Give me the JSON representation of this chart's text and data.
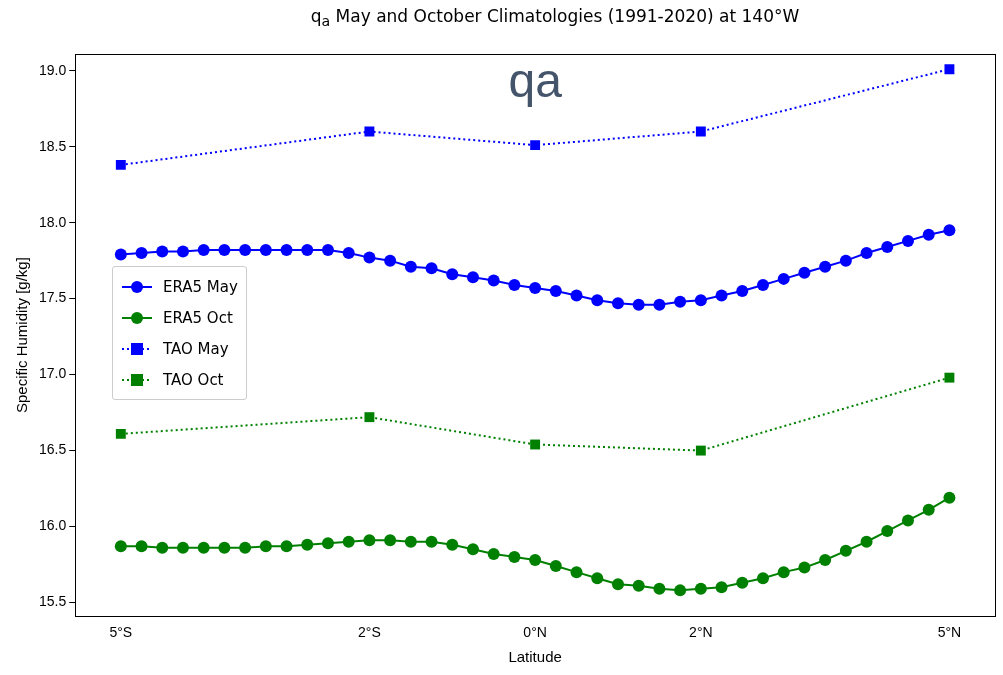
{
  "chart_data": {
    "type": "line",
    "title": "q$_{a}$ May and October Climatologies (1991-2020) at 140°W",
    "xlabel": "Latitude",
    "ylabel": "Specific Humidity [g/kg]",
    "annotations": [
      "qa"
    ],
    "xlim": [
      -5.55,
      5.55
    ],
    "xticks": [
      {
        "value": -5,
        "label": "5°S"
      },
      {
        "value": -2,
        "label": "2°S"
      },
      {
        "value": 0,
        "label": "0°N"
      },
      {
        "value": 2,
        "label": "2°N"
      },
      {
        "value": 5,
        "label": "5°N"
      }
    ],
    "ylim": [
      15.41,
      19.11
    ],
    "yticks": [
      {
        "value": 15.5,
        "label": "15.5"
      },
      {
        "value": 16,
        "label": "16.0"
      },
      {
        "value": 16.5,
        "label": "16.5"
      },
      {
        "value": 17,
        "label": "17.0"
      },
      {
        "value": 17.5,
        "label": "17.5"
      },
      {
        "value": 18,
        "label": "18.0"
      },
      {
        "value": 18.5,
        "label": "18.5"
      },
      {
        "value": 19,
        "label": "19.0"
      }
    ],
    "grid": false,
    "legend": "left",
    "x": [
      -5,
      -4.75,
      -4.5,
      -4.25,
      -4,
      -3.75,
      -3.5,
      -3.25,
      -3,
      -2.75,
      -2.5,
      -2.25,
      -2,
      -1.75,
      -1.5,
      -1.25,
      -1,
      -0.75,
      -0.5,
      -0.25,
      0,
      0.25,
      0.5,
      0.75,
      1,
      1.25,
      1.5,
      1.75,
      2,
      2.25,
      2.5,
      2.75,
      3,
      3.25,
      3.5,
      3.75,
      4,
      4.25,
      4.5,
      4.75,
      5
    ],
    "series": [
      {
        "name": "ERA5 May",
        "color": "#0000ff",
        "marker": "circle",
        "line_style": "solid",
        "values": [
          17.79,
          17.8,
          17.81,
          17.81,
          17.82,
          17.82,
          17.82,
          17.82,
          17.82,
          17.82,
          17.82,
          17.8,
          17.77,
          17.75,
          17.71,
          17.7,
          17.66,
          17.64,
          17.62,
          17.59,
          17.57,
          17.55,
          17.52,
          17.49,
          17.47,
          17.46,
          17.46,
          17.48,
          17.49,
          17.52,
          17.55,
          17.59,
          17.63,
          17.67,
          17.71,
          17.75,
          17.8,
          17.84,
          17.88,
          17.92,
          17.95
        ]
      },
      {
        "name": "ERA5 Oct",
        "color": "#008000",
        "marker": "circle",
        "line_style": "solid",
        "values": [
          15.87,
          15.87,
          15.86,
          15.86,
          15.86,
          15.86,
          15.86,
          15.87,
          15.87,
          15.88,
          15.89,
          15.9,
          15.91,
          15.91,
          15.9,
          15.9,
          15.88,
          15.85,
          15.82,
          15.8,
          15.78,
          15.74,
          15.7,
          15.66,
          15.62,
          15.61,
          15.59,
          15.58,
          15.59,
          15.6,
          15.63,
          15.66,
          15.7,
          15.73,
          15.78,
          15.84,
          15.9,
          15.97,
          16.04,
          16.11,
          16.19
        ]
      },
      {
        "name": "TAO May",
        "color": "#0000ff",
        "marker": "square",
        "line_style": "dotted",
        "x": [
          -5,
          -2,
          0,
          2,
          5
        ],
        "values": [
          18.38,
          18.6,
          18.51,
          18.6,
          19.01
        ]
      },
      {
        "name": "TAO Oct",
        "color": "#008000",
        "marker": "square",
        "line_style": "dotted",
        "x": [
          -5,
          -2,
          0,
          2,
          5
        ],
        "values": [
          16.61,
          16.72,
          16.54,
          16.5,
          16.98
        ]
      }
    ]
  }
}
